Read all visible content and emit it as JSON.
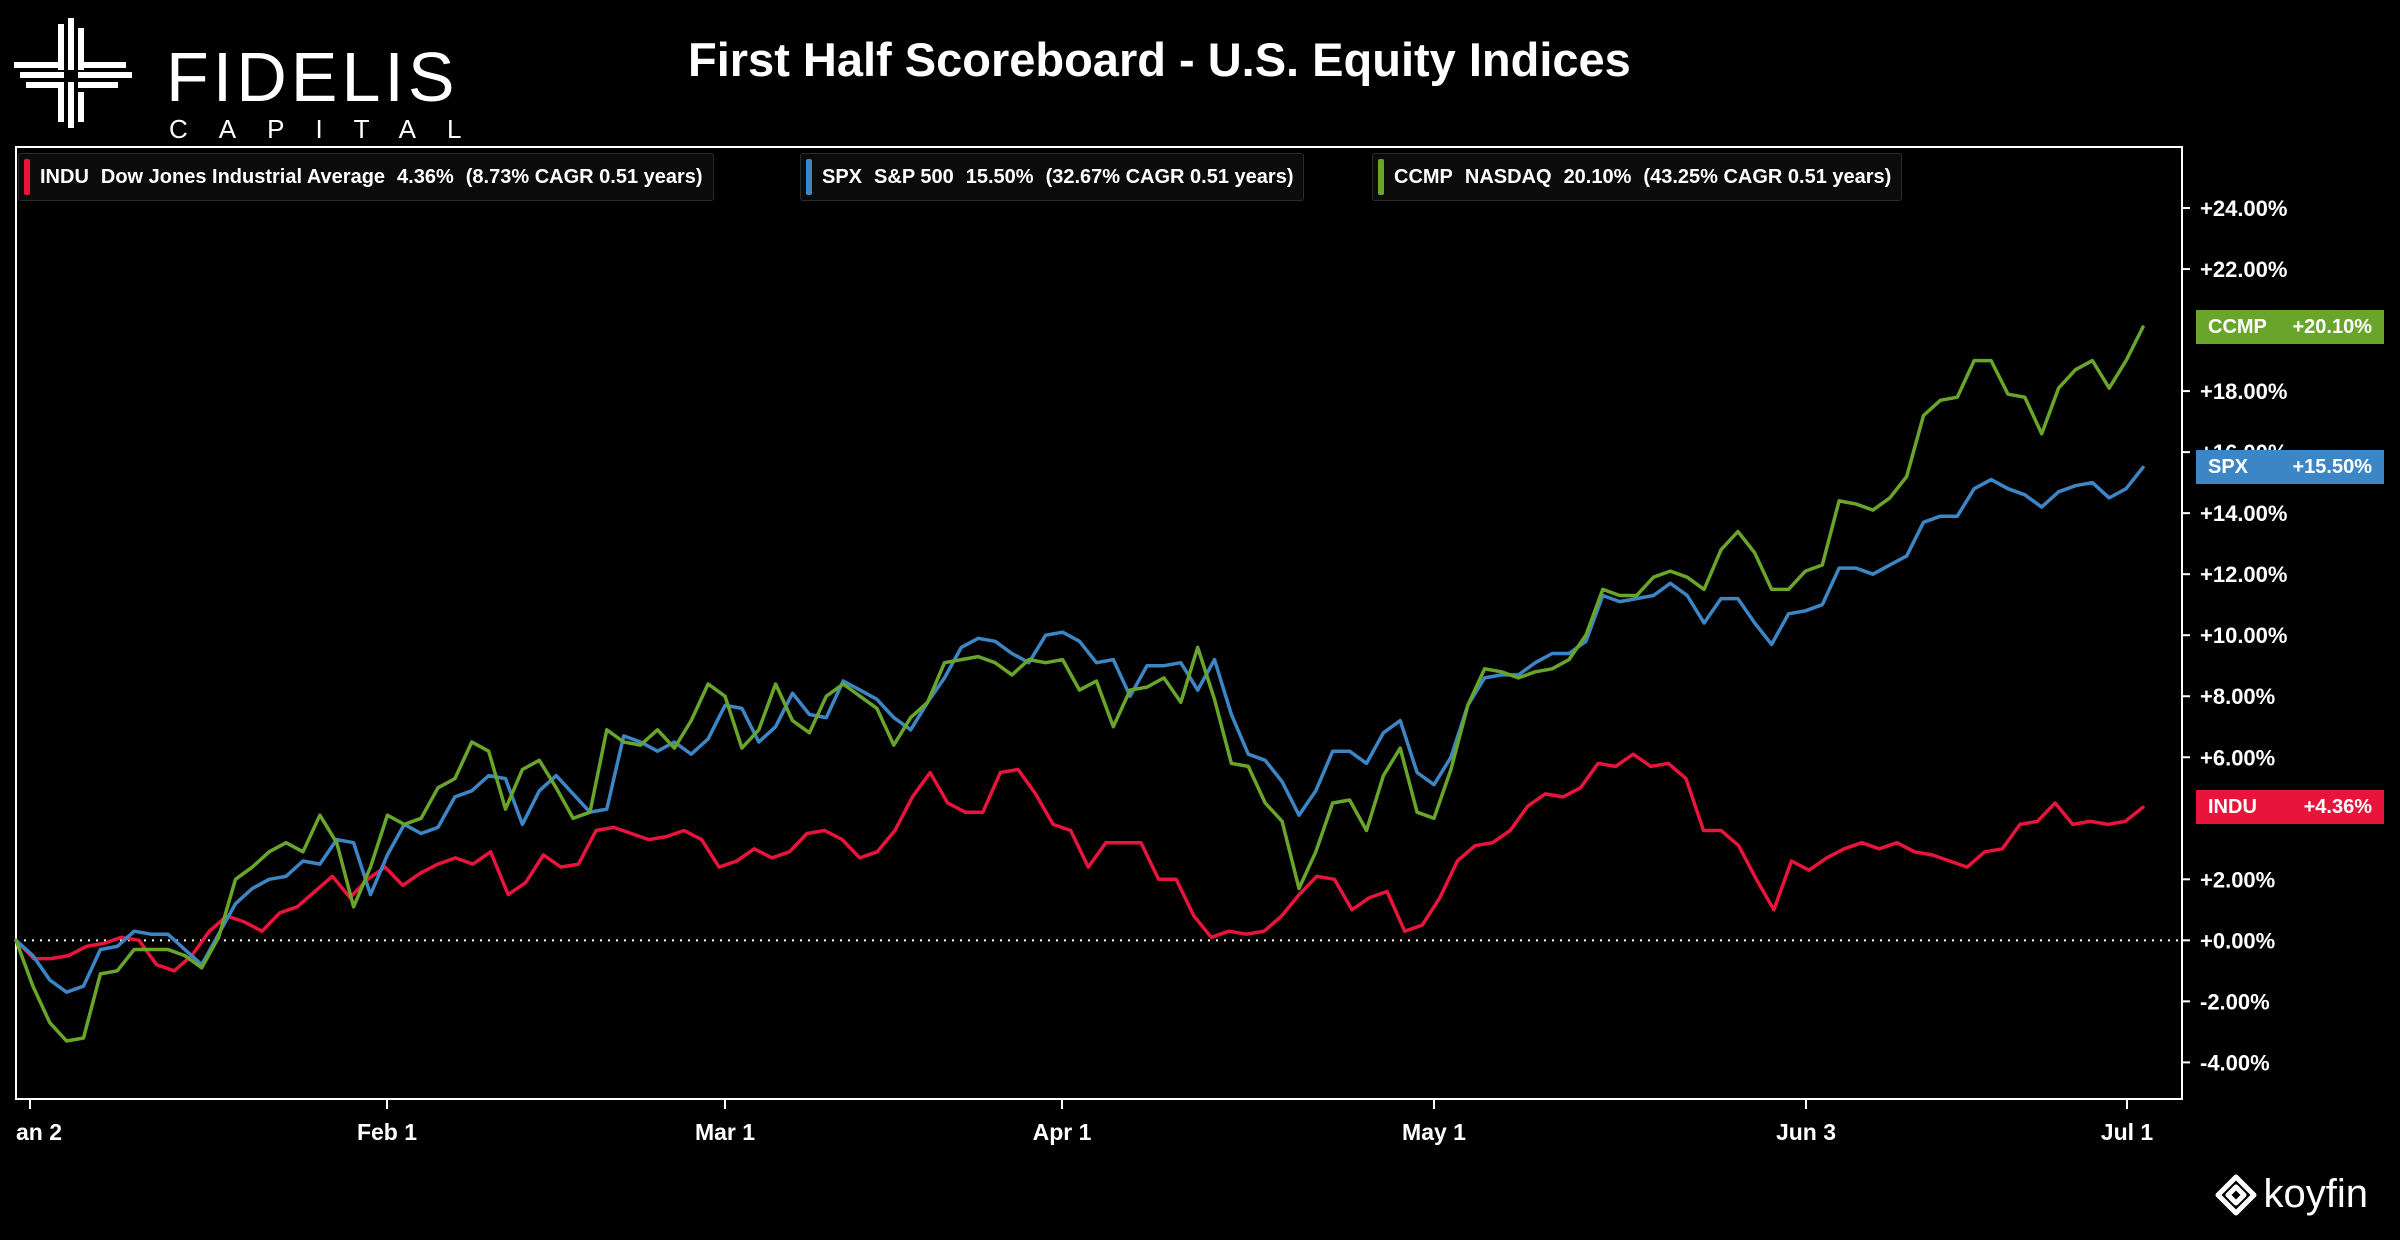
{
  "brand": {
    "logo_word": "FIDELIS",
    "logo_sub": "CAPITAL",
    "provider": "koyfin"
  },
  "title": "First Half Scoreboard - U.S. Equity Indices",
  "legend": [
    {
      "ticker": "INDU",
      "name": "Dow Jones Industrial Average",
      "pct": "4.36%",
      "cagr": "(8.73% CAGR 0.51 years)",
      "color": "#e8143c"
    },
    {
      "ticker": "SPX",
      "name": "S&P 500",
      "pct": "15.50%",
      "cagr": "(32.67% CAGR 0.51 years)",
      "color": "#3d86c6"
    },
    {
      "ticker": "CCMP",
      "name": "NASDAQ",
      "pct": "20.10%",
      "cagr": "(43.25% CAGR 0.51 years)",
      "color": "#6aa52b"
    }
  ],
  "tags": [
    {
      "ticker": "CCMP",
      "value": "+20.10%",
      "color": "#6aa52b",
      "level": 20.1
    },
    {
      "ticker": "SPX",
      "value": "+15.50%",
      "color": "#3d86c6",
      "level": 15.5
    },
    {
      "ticker": "INDU",
      "value": "+4.36%",
      "color": "#e8143c",
      "level": 4.36
    }
  ],
  "chart_data": {
    "type": "line",
    "title": "First Half Scoreboard - U.S. Equity Indices",
    "xlabel": "",
    "ylabel": "",
    "ylim": [
      -5.2,
      26
    ],
    "x_ticks": [
      "an 2",
      "Feb 1",
      "Mar 1",
      "Apr 1",
      "May 1",
      "Jun 3",
      "Jul 1"
    ],
    "y_ticks": [
      "+24.00%",
      "+22.00%",
      "+18.00%",
      "+16.00%",
      "+14.00%",
      "+12.00%",
      "+10.00%",
      "+8.00%",
      "+6.00%",
      "+2.00%",
      "+0.00%",
      "-2.00%",
      "-4.00%"
    ],
    "y_tick_values": [
      24,
      22,
      18,
      16,
      14,
      12,
      10,
      8,
      6,
      2,
      0,
      -2,
      -4
    ],
    "zero_line": true,
    "grid": false,
    "series": [
      {
        "name": "INDU",
        "color": "#e8143c",
        "values": [
          0.0,
          -0.6,
          -0.6,
          -0.5,
          -0.2,
          -0.1,
          0.1,
          0.0,
          -0.8,
          -1.0,
          -0.5,
          0.3,
          0.8,
          0.6,
          0.3,
          0.9,
          1.1,
          1.6,
          2.1,
          1.4,
          2.0,
          2.4,
          1.8,
          2.2,
          2.5,
          2.7,
          2.5,
          2.9,
          1.5,
          1.9,
          2.8,
          2.4,
          2.5,
          3.6,
          3.7,
          3.5,
          3.3,
          3.4,
          3.6,
          3.3,
          2.4,
          2.6,
          3.0,
          2.7,
          2.9,
          3.5,
          3.6,
          3.3,
          2.7,
          2.9,
          3.6,
          4.7,
          5.5,
          4.5,
          4.2,
          4.2,
          5.5,
          5.6,
          4.8,
          3.8,
          3.6,
          2.4,
          3.2,
          3.2,
          3.2,
          2.0,
          2.0,
          0.8,
          0.1,
          0.3,
          0.2,
          0.3,
          0.8,
          1.5,
          2.1,
          2.0,
          1.0,
          1.4,
          1.6,
          0.3,
          0.5,
          1.4,
          2.6,
          3.1,
          3.2,
          3.6,
          4.4,
          4.8,
          4.7,
          5.0,
          5.8,
          5.7,
          6.1,
          5.7,
          5.8,
          5.3,
          3.6,
          3.6,
          3.1,
          2.0,
          1.0,
          2.6,
          2.3,
          2.7,
          3.0,
          3.2,
          3.0,
          3.2,
          2.9,
          2.8,
          2.6,
          2.4,
          2.9,
          3.0,
          3.8,
          3.9,
          4.5,
          3.8,
          3.9,
          3.8,
          3.9,
          4.36
        ]
      },
      {
        "name": "SPX",
        "color": "#3d86c6",
        "values": [
          0.0,
          -0.5,
          -1.3,
          -1.7,
          -1.5,
          -0.3,
          -0.2,
          0.3,
          0.2,
          0.2,
          -0.3,
          -0.8,
          0.2,
          1.2,
          1.7,
          2.0,
          2.1,
          2.6,
          2.5,
          3.3,
          3.2,
          1.5,
          2.8,
          3.8,
          3.5,
          3.7,
          4.7,
          4.9,
          5.4,
          5.3,
          3.8,
          4.9,
          5.4,
          4.8,
          4.2,
          4.3,
          6.7,
          6.5,
          6.2,
          6.5,
          6.1,
          6.6,
          7.7,
          7.6,
          6.5,
          7.0,
          8.1,
          7.4,
          7.3,
          8.5,
          8.2,
          7.9,
          7.3,
          6.9,
          7.8,
          8.6,
          9.6,
          9.9,
          9.8,
          9.4,
          9.1,
          10.0,
          10.1,
          9.8,
          9.1,
          9.2,
          8.0,
          9.0,
          9.0,
          9.1,
          8.2,
          9.2,
          7.4,
          6.1,
          5.9,
          5.2,
          4.1,
          4.9,
          6.2,
          6.2,
          5.8,
          6.8,
          7.2,
          5.5,
          5.1,
          6.0,
          7.7,
          8.6,
          8.7,
          8.7,
          9.1,
          9.4,
          9.4,
          9.8,
          11.3,
          11.1,
          11.2,
          11.3,
          11.7,
          11.3,
          10.4,
          11.2,
          11.2,
          10.4,
          9.7,
          10.7,
          10.8,
          11.0,
          12.2,
          12.2,
          12.0,
          12.3,
          12.6,
          13.7,
          13.9,
          13.9,
          14.8,
          15.1,
          14.8,
          14.6,
          14.2,
          14.7,
          14.9,
          15.0,
          14.5,
          14.8,
          15.5
        ]
      },
      {
        "name": "CCMP",
        "color": "#6aa52b",
        "values": [
          0.0,
          -1.5,
          -2.7,
          -3.3,
          -3.2,
          -1.1,
          -1.0,
          -0.3,
          -0.3,
          -0.3,
          -0.5,
          -0.9,
          0.1,
          2.0,
          2.4,
          2.9,
          3.2,
          2.9,
          4.1,
          3.2,
          1.1,
          2.4,
          4.1,
          3.8,
          4.0,
          5.0,
          5.3,
          6.5,
          6.2,
          4.3,
          5.6,
          5.9,
          5.0,
          4.0,
          4.2,
          6.9,
          6.5,
          6.4,
          6.9,
          6.3,
          7.2,
          8.4,
          8.0,
          6.3,
          6.9,
          8.4,
          7.2,
          6.8,
          8.0,
          8.4,
          8.0,
          7.6,
          6.4,
          7.3,
          7.8,
          9.1,
          9.2,
          9.3,
          9.1,
          8.7,
          9.2,
          9.1,
          9.2,
          8.2,
          8.5,
          7.0,
          8.2,
          8.3,
          8.6,
          7.8,
          9.6,
          7.9,
          5.8,
          5.7,
          4.5,
          3.9,
          1.7,
          2.9,
          4.5,
          4.6,
          3.6,
          5.4,
          6.3,
          4.2,
          4.0,
          5.6,
          7.7,
          8.9,
          8.8,
          8.6,
          8.8,
          8.9,
          9.2,
          10.0,
          11.5,
          11.3,
          11.3,
          11.9,
          12.1,
          11.9,
          11.5,
          12.8,
          13.4,
          12.7,
          11.5,
          11.5,
          12.1,
          12.3,
          14.4,
          14.3,
          14.1,
          14.5,
          15.2,
          17.2,
          17.7,
          17.8,
          19.0,
          19.0,
          17.9,
          17.8,
          16.6,
          18.1,
          18.7,
          19.0,
          18.1,
          19.0,
          20.1
        ]
      }
    ]
  }
}
